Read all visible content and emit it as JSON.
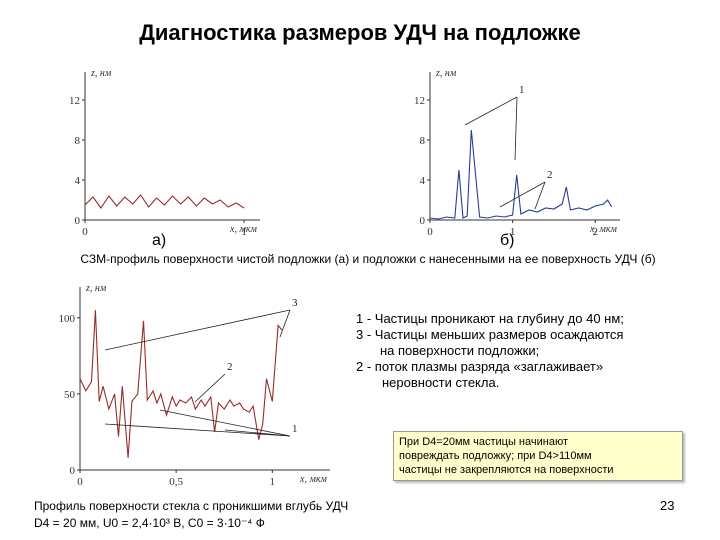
{
  "slide": {
    "title": "Диагностика размеров УДЧ на подложке",
    "caption_top": "СЗМ-профиль поверхности чистой подложки (а) и подложки с нанесенными на ее поверхность УДЧ (б)",
    "notes": [
      "1 - Частицы проникают на глубину до 40 нм;",
      "3 - Частицы меньших размеров осаждаются",
      "на поверхности подложки;",
      "2 - поток плазмы разряда «заглаживает»",
      "неровности стекла."
    ],
    "callout": [
      "При D4=20мм частицы начинают",
      "повреждать подложку; при D4>110мм",
      "частицы не закрепляются на поверхности"
    ],
    "caption_bottom": [
      "Профиль поверхности стекла с проникшими вглубь УДЧ",
      "D4 = 20 мм, U0 = 2,4·10³ В, C0 = 3·10⁻⁴ Ф"
    ],
    "page_number": "23"
  },
  "chart_data": [
    {
      "type": "line",
      "panel_label": "а)",
      "ylabel": "z, нм",
      "xlabel": "x, мкм",
      "y_ticks": [
        "0",
        "4",
        "8",
        "12"
      ],
      "x_ticks": [
        "0",
        "1"
      ],
      "ylim": [
        0,
        14
      ],
      "xlim": [
        0,
        1.1
      ],
      "series_color": "#9b2a2a",
      "series": [
        {
          "x": [
            0.0,
            0.05,
            0.1,
            0.15,
            0.2,
            0.25,
            0.3,
            0.35,
            0.4,
            0.45,
            0.5,
            0.55,
            0.6,
            0.65,
            0.7,
            0.75,
            0.8,
            0.85,
            0.9,
            0.95,
            1.0
          ],
          "y": [
            1.5,
            2.3,
            1.2,
            2.4,
            1.4,
            2.3,
            1.6,
            2.5,
            1.3,
            2.2,
            1.5,
            2.4,
            1.6,
            2.3,
            1.4,
            2.2,
            1.6,
            2.0,
            1.3,
            1.7,
            1.2
          ]
        }
      ]
    },
    {
      "type": "line",
      "panel_label": "б)",
      "ylabel": "z, нм",
      "xlabel": "x, мкм",
      "y_ticks": [
        "0",
        "4",
        "8",
        "12"
      ],
      "x_ticks": [
        "0",
        "1",
        "2"
      ],
      "ylim": [
        0,
        14
      ],
      "xlim": [
        0,
        2.3
      ],
      "series_color": "#2a3a9b",
      "annotations": [
        "1",
        "2"
      ],
      "series": [
        {
          "x": [
            0.0,
            0.1,
            0.2,
            0.3,
            0.35,
            0.4,
            0.45,
            0.5,
            0.6,
            0.7,
            0.8,
            0.9,
            1.0,
            1.05,
            1.1,
            1.2,
            1.3,
            1.4,
            1.5,
            1.6,
            1.65,
            1.7,
            1.8,
            1.9,
            2.0,
            2.1,
            2.15,
            2.2
          ],
          "y": [
            0.2,
            0.1,
            0.3,
            0.2,
            5.0,
            0.2,
            0.4,
            9.0,
            0.3,
            0.2,
            0.4,
            0.3,
            0.5,
            4.5,
            0.6,
            1.0,
            0.8,
            1.2,
            1.1,
            1.6,
            3.3,
            1.0,
            1.2,
            1.0,
            1.4,
            1.6,
            2.0,
            1.3
          ]
        }
      ]
    },
    {
      "type": "line",
      "ylabel": "z, нм",
      "xlabel": "x, мкм",
      "y_ticks": [
        "0",
        "50",
        "100"
      ],
      "x_ticks": [
        "0",
        "0,5",
        "1"
      ],
      "ylim": [
        0,
        115
      ],
      "xlim": [
        0,
        1.3
      ],
      "series_color": "#9b2a2a",
      "annotations": [
        "1",
        "2",
        "3"
      ],
      "series": [
        {
          "x": [
            0.0,
            0.03,
            0.06,
            0.08,
            0.1,
            0.12,
            0.15,
            0.18,
            0.2,
            0.22,
            0.25,
            0.27,
            0.3,
            0.33,
            0.35,
            0.38,
            0.4,
            0.42,
            0.45,
            0.48,
            0.5,
            0.52,
            0.55,
            0.58,
            0.6,
            0.63,
            0.65,
            0.68,
            0.7,
            0.72,
            0.75,
            0.78,
            0.8,
            0.83,
            0.85,
            0.88,
            0.9,
            0.93,
            0.95,
            0.97,
            1.0,
            1.03,
            1.05
          ],
          "y": [
            60,
            52,
            58,
            105,
            45,
            55,
            40,
            50,
            22,
            55,
            8,
            45,
            50,
            98,
            46,
            52,
            44,
            50,
            36,
            48,
            42,
            46,
            44,
            48,
            40,
            46,
            42,
            48,
            25,
            44,
            40,
            46,
            42,
            44,
            40,
            38,
            42,
            20,
            30,
            60,
            45,
            95,
            92
          ]
        }
      ]
    }
  ]
}
